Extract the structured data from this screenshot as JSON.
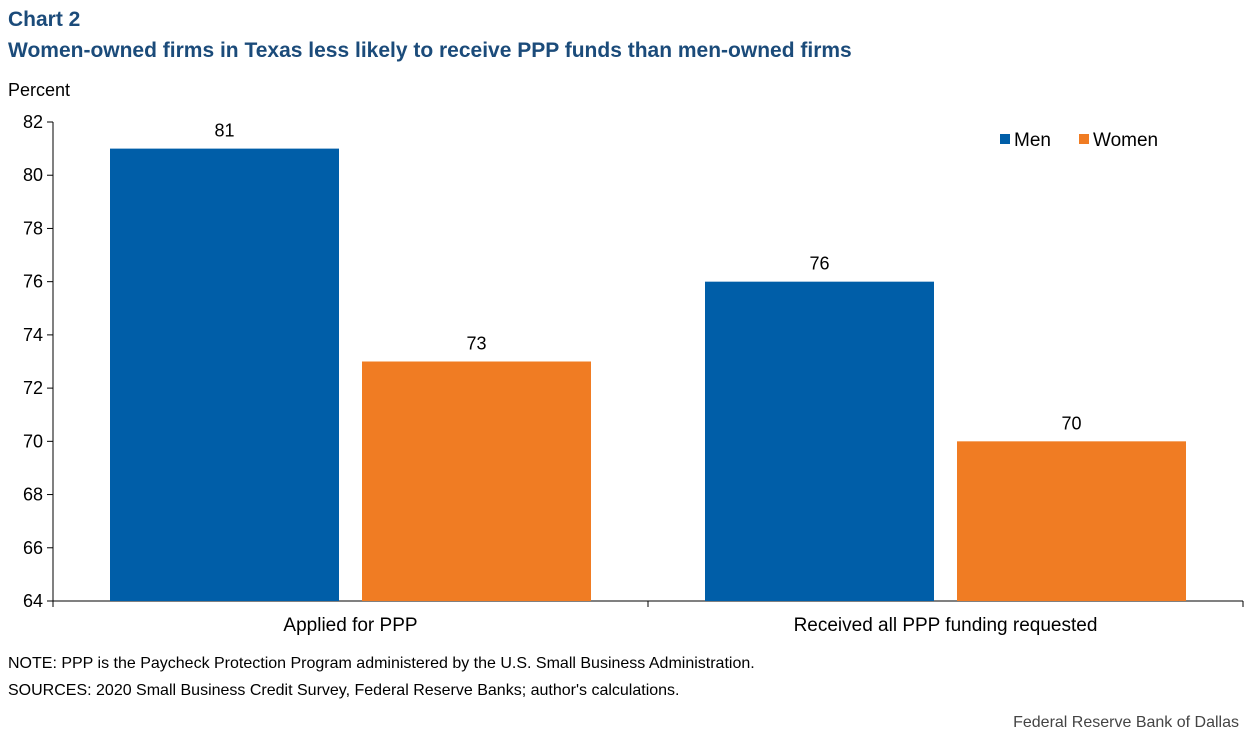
{
  "header": {
    "label": "Chart 2",
    "title": "Women-owned firms in Texas less likely to receive PPP funds than men-owned firms"
  },
  "colors": {
    "men": "#005ea8",
    "women": "#f07c23",
    "title": "#1b4b7a"
  },
  "chart_data": {
    "type": "bar",
    "title": "Women-owned firms in Texas less likely to receive PPP funds than men-owned firms",
    "ylabel": "Percent",
    "xlabel": "",
    "ylim": [
      64,
      82
    ],
    "yticks": [
      64,
      66,
      68,
      70,
      72,
      74,
      76,
      78,
      80,
      82
    ],
    "categories": [
      "Applied for PPP",
      "Received all PPP funding requested"
    ],
    "series": [
      {
        "name": "Men",
        "values": [
          81,
          76
        ]
      },
      {
        "name": "Women",
        "values": [
          73,
          70
        ]
      }
    ],
    "data_labels": true,
    "legend_position": "top-right"
  },
  "footer": {
    "note": "NOTE: PPP is the Paycheck Protection Program administered by the U.S. Small Business Administration.",
    "sources": "SOURCES: 2020 Small Business Credit Survey, Federal Reserve Banks; author's calculations.",
    "credit": "Federal Reserve Bank of Dallas"
  }
}
